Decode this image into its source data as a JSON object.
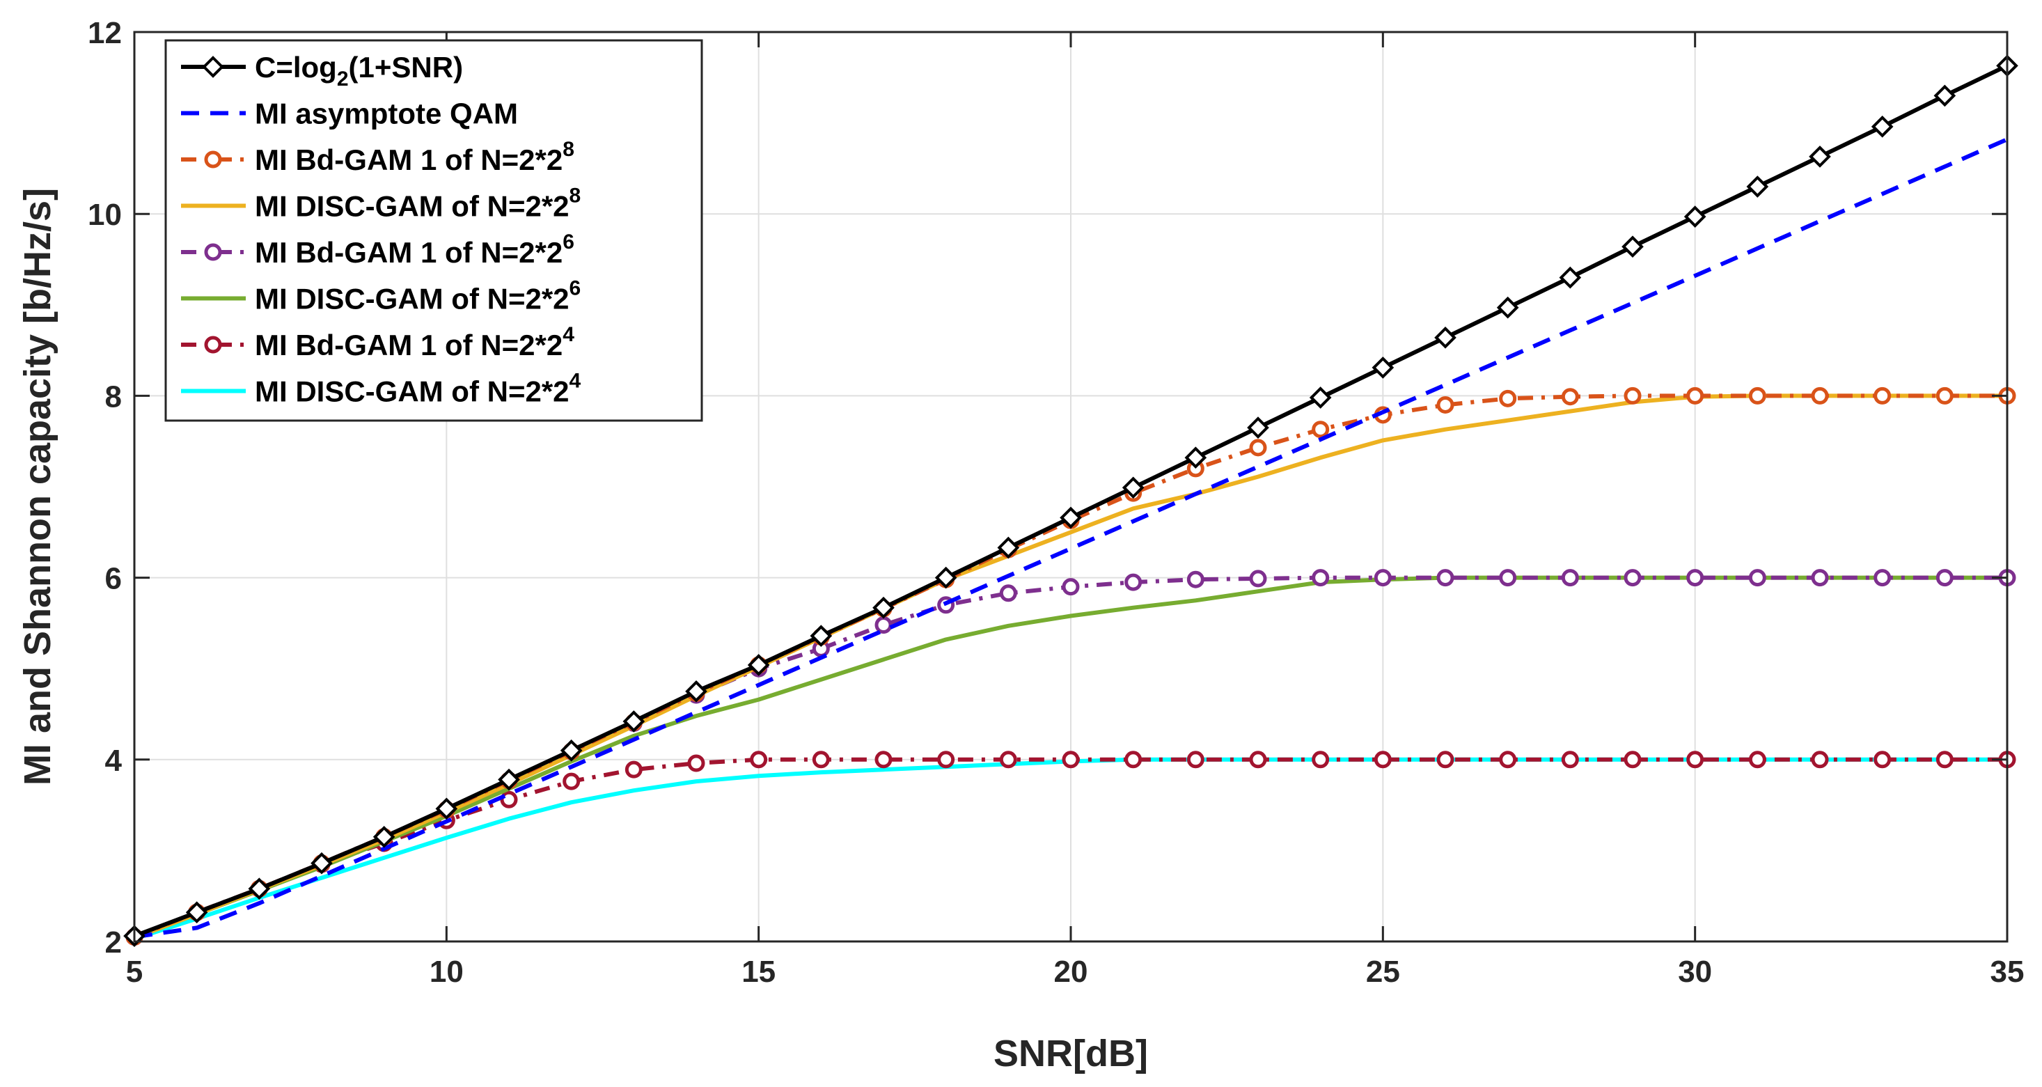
{
  "chart_data": {
    "type": "line",
    "title": "",
    "xlabel": "SNR[dB]",
    "ylabel": "MI and Shannon capacity [b/Hz/s]",
    "xlim": [
      5,
      35
    ],
    "ylim": [
      2,
      12
    ],
    "xticks": [
      5,
      10,
      15,
      20,
      25,
      30,
      35
    ],
    "yticks": [
      2,
      4,
      6,
      8,
      10,
      12
    ],
    "x_tick_labels": [
      "5",
      "10",
      "15",
      "20",
      "25",
      "30",
      "35"
    ],
    "y_tick_labels": [
      "2",
      "4",
      "6",
      "8",
      "10",
      "12"
    ],
    "grid": true,
    "legend_position": "top-left",
    "x": [
      5,
      6,
      7,
      8,
      9,
      10,
      11,
      12,
      13,
      14,
      15,
      16,
      17,
      18,
      19,
      20,
      21,
      22,
      23,
      24,
      25,
      26,
      27,
      28,
      29,
      30,
      31,
      32,
      33,
      34,
      35
    ],
    "series": [
      {
        "name": "C=log2(1+SNR)",
        "legend_main": "C=log",
        "legend_sub": "2",
        "legend_tail": "(1+SNR)",
        "color": "#000000",
        "style": "solid",
        "marker": "diamond",
        "values": [
          2.06,
          2.32,
          2.58,
          2.86,
          3.15,
          3.46,
          3.78,
          4.1,
          4.42,
          4.75,
          5.04,
          5.36,
          5.67,
          6.0,
          6.33,
          6.66,
          6.99,
          7.32,
          7.65,
          7.98,
          8.31,
          8.64,
          8.97,
          9.3,
          9.64,
          9.97,
          10.3,
          10.63,
          10.96,
          11.3,
          11.63
        ]
      },
      {
        "name": "MI asymptote QAM",
        "legend_main": "MI asymptote QAM",
        "color": "#0000ff",
        "style": "dashed",
        "marker": "none",
        "values": [
          2.05,
          2.15,
          2.42,
          2.72,
          3.02,
          3.32,
          3.62,
          3.92,
          4.22,
          4.52,
          4.82,
          5.12,
          5.42,
          5.72,
          6.02,
          6.32,
          6.62,
          6.92,
          7.22,
          7.52,
          7.82,
          8.12,
          8.42,
          8.72,
          9.02,
          9.32,
          9.62,
          9.92,
          10.22,
          10.52,
          10.82
        ]
      },
      {
        "name": "MI Bd-GAM 1   of N=2*2^8",
        "legend_main": "MI Bd-GAM 1   of N=2*2",
        "legend_sup": "8",
        "color": "#d95319",
        "style": "dashdot",
        "marker": "circle",
        "values": [
          2.05,
          2.32,
          2.58,
          2.86,
          3.15,
          3.45,
          3.77,
          4.09,
          4.41,
          4.73,
          5.04,
          5.35,
          5.66,
          5.98,
          6.31,
          6.63,
          6.93,
          7.2,
          7.43,
          7.63,
          7.79,
          7.9,
          7.97,
          7.99,
          8.0,
          8.0,
          8.0,
          8.0,
          8.0,
          8.0,
          8.0
        ]
      },
      {
        "name": "MI DISC-GAM  of N=2*2^8",
        "legend_main": "MI DISC-GAM  of N=2*2",
        "legend_sup": "8",
        "color": "#edb120",
        "style": "solid",
        "marker": "none",
        "values": [
          2.04,
          2.3,
          2.57,
          2.84,
          3.12,
          3.42,
          3.73,
          4.05,
          4.37,
          4.7,
          5.02,
          5.34,
          5.66,
          5.98,
          6.24,
          6.5,
          6.76,
          6.92,
          7.11,
          7.32,
          7.51,
          7.63,
          7.73,
          7.83,
          7.93,
          7.99,
          8.0,
          8.0,
          8.0,
          8.0,
          8.0
        ]
      },
      {
        "name": "MI Bd-GAM 1   of N=2*2^6",
        "legend_main": "MI Bd-GAM 1   of N=2*2",
        "legend_sup": "6",
        "color": "#7e2f8e",
        "style": "dashdot",
        "marker": "circle",
        "values": [
          2.05,
          2.32,
          2.58,
          2.86,
          3.15,
          3.45,
          3.77,
          4.09,
          4.4,
          4.71,
          5.0,
          5.22,
          5.48,
          5.7,
          5.83,
          5.9,
          5.95,
          5.98,
          5.99,
          6.0,
          6.0,
          6.0,
          6.0,
          6.0,
          6.0,
          6.0,
          6.0,
          6.0,
          6.0,
          6.0,
          6.0
        ]
      },
      {
        "name": "MI DISC-GAM  of N=2*2^6",
        "legend_main": "MI DISC-GAM  of N=2*2",
        "legend_sup": "6",
        "color": "#77ac30",
        "style": "solid",
        "marker": "none",
        "values": [
          2.04,
          2.3,
          2.56,
          2.82,
          3.1,
          3.38,
          3.68,
          3.98,
          4.26,
          4.48,
          4.66,
          4.88,
          5.1,
          5.32,
          5.47,
          5.58,
          5.67,
          5.75,
          5.85,
          5.95,
          5.98,
          6.0,
          6.0,
          6.0,
          6.0,
          6.0,
          6.0,
          6.0,
          6.0,
          6.0,
          6.0
        ]
      },
      {
        "name": "MI Bd-GAM 1   of N=2*2^4",
        "legend_main": "MI Bd-GAM 1   of N=2*2",
        "legend_sup": "4",
        "color": "#a2142f",
        "style": "dashdot",
        "marker": "circle",
        "values": [
          2.05,
          2.32,
          2.58,
          2.85,
          3.08,
          3.33,
          3.56,
          3.76,
          3.89,
          3.96,
          4.0,
          4.0,
          4.0,
          4.0,
          4.0,
          4.0,
          4.0,
          4.0,
          4.0,
          4.0,
          4.0,
          4.0,
          4.0,
          4.0,
          4.0,
          4.0,
          4.0,
          4.0,
          4.0,
          4.0,
          4.0
        ]
      },
      {
        "name": "MI DISC-GAM  of N=2*2^4",
        "legend_main": "MI DISC-GAM  of N=2*2",
        "legend_sup": "4",
        "color": "#00ffff",
        "style": "solid",
        "marker": "none",
        "values": [
          2.03,
          2.25,
          2.48,
          2.7,
          2.92,
          3.14,
          3.35,
          3.53,
          3.66,
          3.76,
          3.82,
          3.86,
          3.89,
          3.92,
          3.95,
          3.98,
          4.0,
          4.0,
          4.0,
          4.0,
          4.0,
          4.0,
          4.0,
          4.0,
          4.0,
          4.0,
          4.0,
          4.0,
          4.0,
          4.0,
          4.0
        ]
      }
    ]
  }
}
